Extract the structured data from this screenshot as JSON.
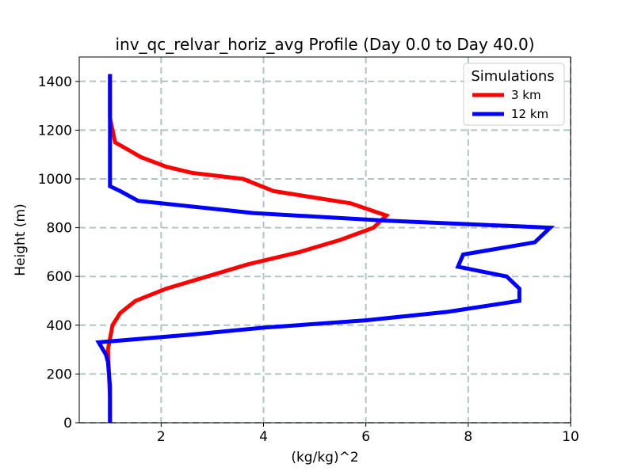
{
  "chart_data": {
    "type": "line",
    "title": "inv_qc_relvar_horiz_avg Profile (Day 0.0 to Day 40.0)",
    "xlabel": "(kg/kg)^2",
    "ylabel": "Height (m)",
    "xlim": [
      0.4,
      10
    ],
    "ylim": [
      0,
      1500
    ],
    "x_ticks": [
      2,
      4,
      6,
      8,
      10
    ],
    "y_ticks": [
      0,
      200,
      400,
      600,
      800,
      1000,
      1200,
      1400
    ],
    "grid": true,
    "legend": {
      "title": "Simulations",
      "placement": "top-right"
    },
    "series": [
      {
        "name": "3 km",
        "color": "#ff0000",
        "points": [
          [
            1.0,
            0
          ],
          [
            1.0,
            100
          ],
          [
            0.98,
            200
          ],
          [
            0.96,
            300
          ],
          [
            1.05,
            400
          ],
          [
            1.2,
            450
          ],
          [
            1.5,
            500
          ],
          [
            2.1,
            550
          ],
          [
            2.9,
            600
          ],
          [
            3.7,
            650
          ],
          [
            4.7,
            700
          ],
          [
            5.5,
            750
          ],
          [
            6.15,
            800
          ],
          [
            6.4,
            850
          ],
          [
            5.7,
            900
          ],
          [
            4.2,
            950
          ],
          [
            3.6,
            1000
          ],
          [
            2.6,
            1025
          ],
          [
            2.1,
            1050
          ],
          [
            1.6,
            1090
          ],
          [
            1.35,
            1120
          ],
          [
            1.1,
            1150
          ],
          [
            1.05,
            1200
          ],
          [
            1.0,
            1250
          ],
          [
            1.0,
            1300
          ],
          [
            1.0,
            1430
          ]
        ]
      },
      {
        "name": "12 km",
        "color": "#0000ff",
        "points": [
          [
            1.0,
            0
          ],
          [
            1.0,
            150
          ],
          [
            0.96,
            250
          ],
          [
            0.92,
            280
          ],
          [
            0.78,
            330
          ],
          [
            2.5,
            360
          ],
          [
            4.0,
            390
          ],
          [
            6.0,
            420
          ],
          [
            7.6,
            455
          ],
          [
            9.0,
            500
          ],
          [
            9.0,
            550
          ],
          [
            8.75,
            600
          ],
          [
            7.8,
            640
          ],
          [
            7.9,
            690
          ],
          [
            9.3,
            740
          ],
          [
            9.6,
            800
          ],
          [
            6.3,
            830
          ],
          [
            3.8,
            860
          ],
          [
            1.55,
            910
          ],
          [
            1.2,
            950
          ],
          [
            1.0,
            970
          ],
          [
            1.0,
            1100
          ],
          [
            1.0,
            1300
          ],
          [
            1.0,
            1430
          ]
        ]
      }
    ]
  }
}
